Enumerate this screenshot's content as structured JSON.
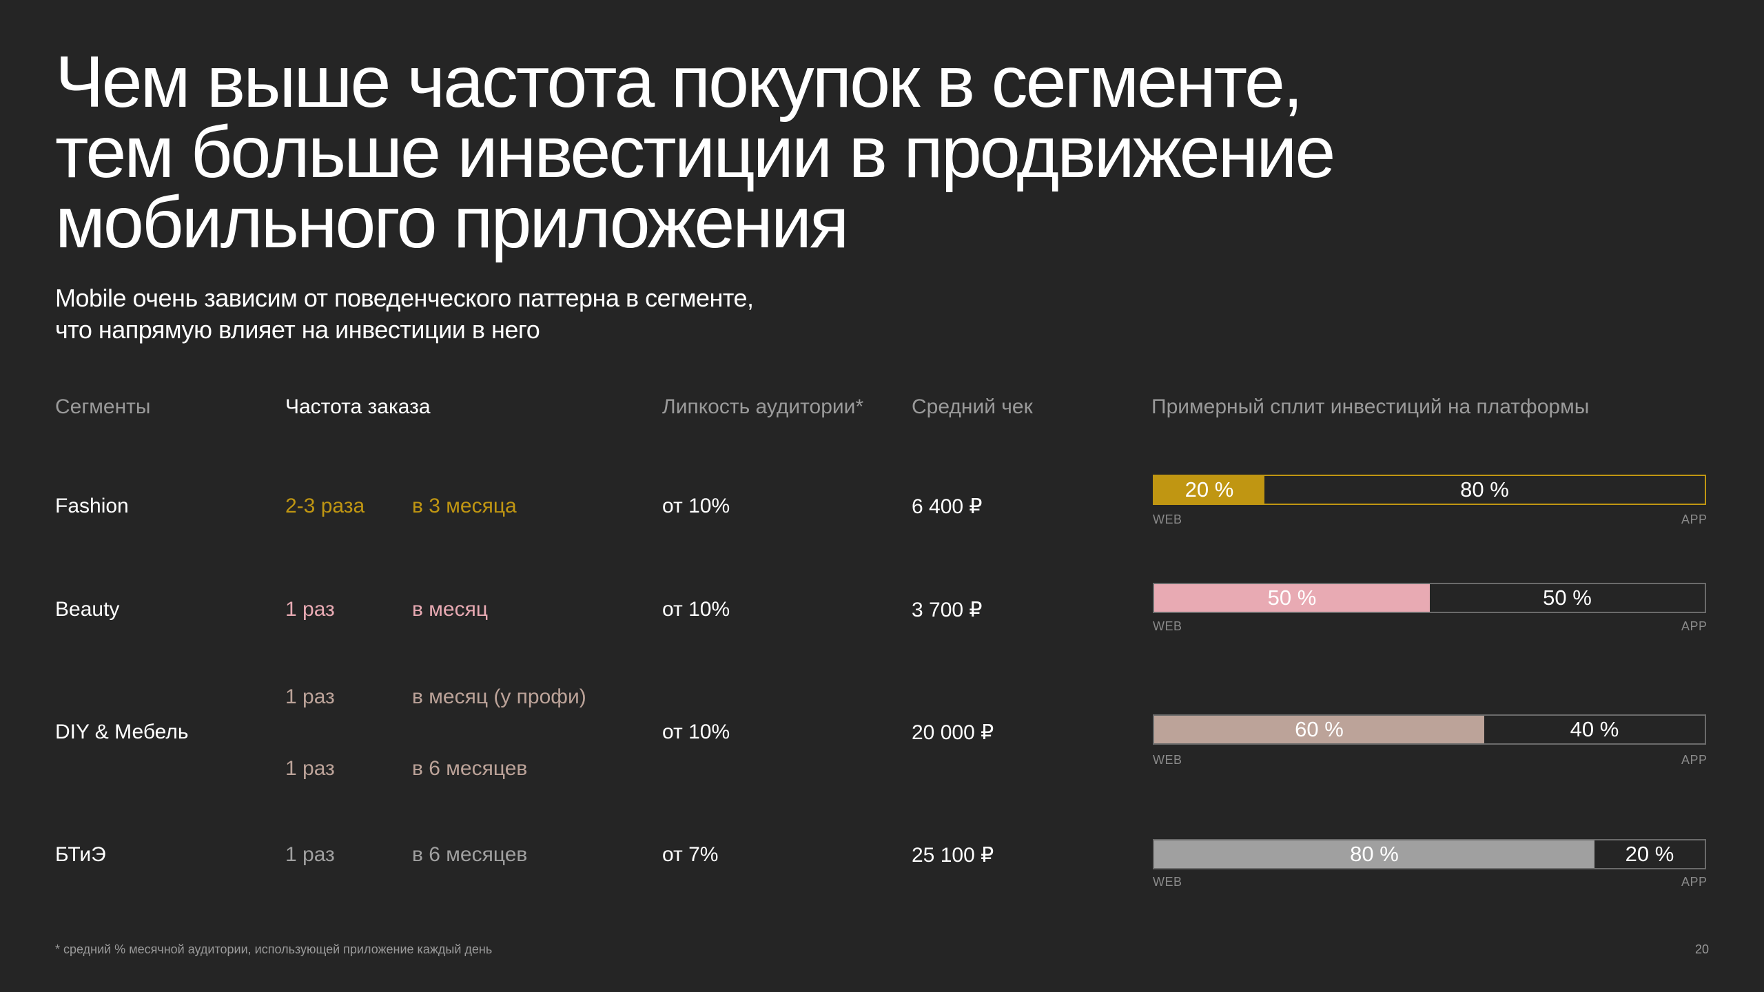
{
  "title_lines": [
    "Чем выше частота покупок в сегменте,",
    "тем больше инвестиции в продвижение",
    "мобильного приложения"
  ],
  "subtitle_lines": [
    "Mobile очень зависим от поведенческого паттерна в сегменте,",
    "что напрямую влияет на инвестиции в него"
  ],
  "headers": {
    "segments": "Сегменты",
    "frequency": "Частота заказа",
    "stickiness": "Липкость аудитории*",
    "avg_check": "Средний чек",
    "split": "Примерный сплит инвестиций на платформы"
  },
  "rows": [
    {
      "segment": "Fashion",
      "freq": [
        {
          "count": "2-3 раза",
          "period": "в 3 месяца"
        }
      ],
      "stickiness": "от 10%",
      "avg_check": "6 400 ₽",
      "web_label": "20 %",
      "app_label": "80 %",
      "web_share": 0.2,
      "accent": "#c09612"
    },
    {
      "segment": "Beauty",
      "freq": [
        {
          "count": "1 раз",
          "period": "в месяц"
        }
      ],
      "stickiness": "от 10%",
      "avg_check": "3 700 ₽",
      "web_label": "50 %",
      "app_label": "50 %",
      "web_share": 0.5,
      "accent": "#e8aab3"
    },
    {
      "segment": "DIY & Мебель",
      "freq": [
        {
          "count": "1 раз",
          "period": "в месяц (у профи)"
        },
        {
          "count": "1 раз",
          "period": "в 6 месяцев"
        }
      ],
      "stickiness": "от 10%",
      "avg_check": "20 000 ₽",
      "web_label": "60 %",
      "app_label": "40 %",
      "web_share": 0.6,
      "accent": "#bca399"
    },
    {
      "segment": "БТиЭ",
      "freq": [
        {
          "count": "1 раз",
          "period": "в 6 месяцев"
        }
      ],
      "stickiness": "от 7%",
      "avg_check": "25 100 ₽",
      "web_label": "80 %",
      "app_label": "20 %",
      "web_share": 0.8,
      "accent": "#a0a0a0"
    }
  ],
  "web_tag": "WEB",
  "app_tag": "APP",
  "footnote": "* средний % месячной аудитории, использующей приложение каждый день",
  "page_number": "20"
}
